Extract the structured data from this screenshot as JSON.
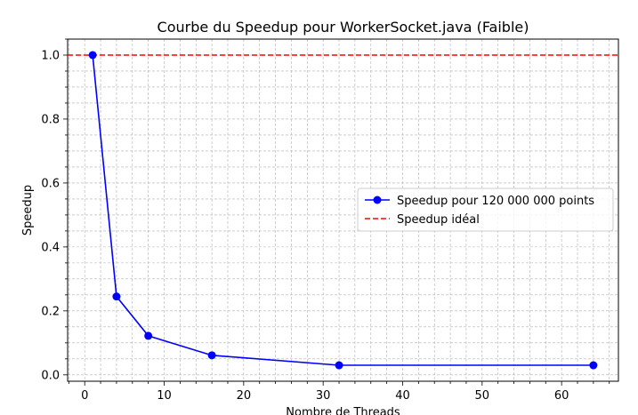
{
  "chart_data": {
    "type": "line",
    "title": "Courbe du Speedup pour WorkerSocket.java (Faible)",
    "xlabel": "Nombre de Threads",
    "ylabel": "Speedup",
    "xlim": [
      -2.15,
      67.15
    ],
    "ylim": [
      -0.02,
      1.05
    ],
    "x_ticks": [
      0,
      10,
      20,
      30,
      40,
      50,
      60
    ],
    "y_ticks": [
      0.0,
      0.2,
      0.4,
      0.6,
      0.8,
      1.0
    ],
    "x_tick_labels": [
      "0",
      "10",
      "20",
      "30",
      "40",
      "50",
      "60"
    ],
    "y_tick_labels": [
      "0.0",
      "0.2",
      "0.4",
      "0.6",
      "0.8",
      "1.0"
    ],
    "grid": true,
    "grid_minor": true,
    "legend_position": "center-right",
    "series": [
      {
        "name": "Speedup pour 120 000 000 points",
        "color": "#0000ff",
        "marker": "circle",
        "x": [
          1,
          4,
          8,
          16,
          32,
          64
        ],
        "y": [
          1.0,
          0.245,
          0.122,
          0.061,
          0.03,
          0.03
        ]
      }
    ],
    "reference_lines": [
      {
        "name": "Speedup idéal",
        "color": "#ff0000",
        "style": "dashed",
        "y": 1.0
      }
    ]
  }
}
